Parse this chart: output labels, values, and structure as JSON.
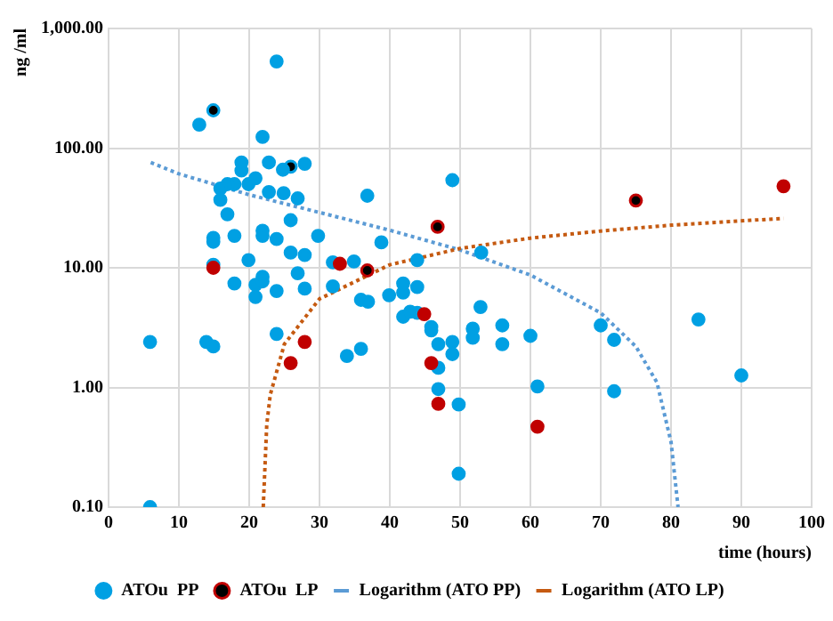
{
  "chart_data": {
    "type": "scatter",
    "xlabel": "time (hours)",
    "ylabel": "ng /ml",
    "log": "y",
    "grid": true,
    "legend": "bottom",
    "xlim": [
      0,
      100
    ],
    "xticks": [
      0,
      10,
      20,
      30,
      40,
      50,
      60,
      70,
      80,
      90,
      100
    ],
    "ylim": [
      0.1,
      1000
    ],
    "yticks": [
      {
        "value": 0.1,
        "label": "0.10"
      },
      {
        "value": 1,
        "label": "1.00"
      },
      {
        "value": 10,
        "label": "10.00"
      },
      {
        "value": 100,
        "label": "100.00"
      },
      {
        "value": 1000,
        "label": "1,000.00"
      }
    ],
    "series": [
      {
        "name": "ATOu  PP",
        "type": "scatter",
        "marker": "circle",
        "color": "#00a0e3",
        "x": [
          23.9,
          14.9,
          12.9,
          21.9,
          18.9,
          18.9,
          22.8,
          25.9,
          24.8,
          27.9,
          20.9,
          19.9,
          17.9,
          16.9,
          15.9,
          15.9,
          22.8,
          24.9,
          26.9,
          36.8,
          48.9,
          16.9,
          14.9,
          14.9,
          17.9,
          21.9,
          21.9,
          23.9,
          25.9,
          29.8,
          38.8,
          25.9,
          27.9,
          19.9,
          31.9,
          34.9,
          43.9,
          14.9,
          17.9,
          20.9,
          20.9,
          21.9,
          21.9,
          23.9,
          26.9,
          27.9,
          31.9,
          35.9,
          36.9,
          39.9,
          41.9,
          41.9,
          43.9,
          41.9,
          42.9,
          43.9,
          45.9,
          45.9,
          46.9,
          46.9,
          48.9,
          48.9,
          46.9,
          49.8,
          49.8,
          51.8,
          51.8,
          5.9,
          13.9,
          14.9,
          23.9,
          33.9,
          35.9,
          5.9,
          52.9,
          53,
          56,
          56,
          60,
          70,
          71.9,
          83.9,
          90,
          61,
          71.9
        ],
        "values": [
          530,
          207,
          157,
          124,
          76,
          65,
          76,
          70,
          66,
          74,
          56,
          50,
          50,
          50,
          46,
          37,
          43,
          42,
          38,
          40,
          54,
          28,
          17.8,
          16.5,
          18.5,
          20.4,
          18.5,
          17.4,
          25,
          18.5,
          16.3,
          13.4,
          12.8,
          11.6,
          11.1,
          11.3,
          11.6,
          10.6,
          7.4,
          7.2,
          5.7,
          8.4,
          7.7,
          6.4,
          9,
          6.7,
          7,
          5.4,
          5.2,
          5.9,
          7.4,
          6.2,
          6.9,
          3.9,
          4.3,
          4.2,
          3.2,
          3,
          2.3,
          1.46,
          2.4,
          1.9,
          0.97,
          0.72,
          0.19,
          3.1,
          2.6,
          2.4,
          2.4,
          2.2,
          2.8,
          1.83,
          2.1,
          0.1,
          4.7,
          13.4,
          3.3,
          2.3,
          2.7,
          3.3,
          2.5,
          3.7,
          1.26,
          1.02,
          0.93
        ],
        "colors": [
          "#00a0e3",
          "#000000",
          "#00a0e3",
          "#00a0e3",
          "#00a0e3",
          "#00a0e3",
          "#00a0e3",
          "#000000",
          "#00a0e3",
          "#00a0e3",
          "#00a0e3",
          "#00a0e3",
          "#00a0e3",
          "#00a0e3",
          "#00a0e3",
          "#00a0e3",
          "#00a0e3",
          "#00a0e3",
          "#00a0e3",
          "#00a0e3",
          "#00a0e3",
          "#00a0e3",
          "#00a0e3",
          "#00a0e3",
          "#00a0e3",
          "#00a0e3",
          "#00a0e3",
          "#00a0e3",
          "#00a0e3",
          "#00a0e3",
          "#00a0e3",
          "#00a0e3",
          "#00a0e3",
          "#00a0e3",
          "#00a0e3",
          "#00a0e3",
          "#00a0e3",
          "#00a0e3",
          "#00a0e3",
          "#00a0e3",
          "#00a0e3",
          "#00a0e3",
          "#00a0e3",
          "#00a0e3",
          "#00a0e3",
          "#00a0e3",
          "#00a0e3",
          "#00a0e3",
          "#00a0e3",
          "#00a0e3",
          "#00a0e3",
          "#00a0e3",
          "#00a0e3",
          "#00a0e3",
          "#00a0e3",
          "#00a0e3",
          "#00a0e3",
          "#00a0e3",
          "#00a0e3",
          "#00a0e3",
          "#00a0e3",
          "#00a0e3",
          "#00a0e3",
          "#00a0e3",
          "#00a0e3",
          "#00a0e3",
          "#00a0e3",
          "#00a0e3",
          "#00a0e3",
          "#00a0e3",
          "#00a0e3",
          "#00a0e3",
          "#00a0e3",
          "#00a0e3",
          "#00a0e3",
          "#00a0e3",
          "#00a0e3",
          "#00a0e3",
          "#00a0e3",
          "#00a0e3",
          "#00a0e3",
          "#00a0e3",
          "#00a0e3",
          "#00a0e3",
          "#00a0e3"
        ]
      },
      {
        "name": "ATOu  LP",
        "type": "scatter",
        "marker": "circle",
        "color": "#c00000",
        "x": [
          46.8,
          75,
          96,
          14.9,
          32.9,
          36.8,
          44.9,
          45.9,
          46.9,
          27.9,
          25.9,
          61
        ],
        "values": [
          22,
          36.5,
          48,
          10,
          10.8,
          9.5,
          4.1,
          1.6,
          0.73,
          2.4,
          1.6,
          0.47
        ],
        "colors": [
          "#000000",
          "#000000",
          "#c00000",
          "#c00000",
          "#c00000",
          "#000000",
          "#c00000",
          "#c00000",
          "#c00000",
          "#c00000",
          "#c00000",
          "#c00000"
        ]
      },
      {
        "name": "Logarithm (ATO PP)",
        "type": "line",
        "marker": "none",
        "line_style": "dotted",
        "color": "#5b9bd5",
        "x": [
          6,
          10,
          20,
          30,
          40,
          50,
          60,
          70,
          75,
          78,
          80,
          81
        ],
        "values": [
          76,
          61,
          40.8,
          29,
          20.6,
          14.1,
          8.7,
          4.2,
          2.2,
          1.1,
          0.35,
          0.1
        ]
      },
      {
        "name": "Logarithm (ATO LP)",
        "type": "line",
        "marker": "none",
        "line_style": "dotted",
        "color": "#c55a11",
        "x": [
          22,
          22.5,
          23,
          25,
          30,
          40,
          50,
          60,
          70,
          80,
          96
        ],
        "values": [
          0.1,
          0.49,
          0.87,
          2.3,
          5.5,
          10.6,
          14.5,
          17.7,
          20.3,
          22.7,
          25.9
        ]
      }
    ]
  }
}
